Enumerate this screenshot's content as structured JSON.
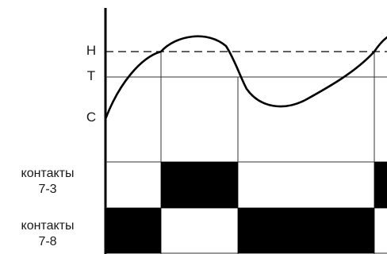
{
  "levels": {
    "h": "H",
    "t": "T",
    "c": "C"
  },
  "rows": {
    "contacts_7_3": {
      "line1": "контакты",
      "line2": "7-3"
    },
    "contacts_7_8": {
      "line1": "контакты",
      "line2": "7-8"
    }
  },
  "colors": {
    "ink": "#000000",
    "grid": "#333333",
    "background": "#ffffff"
  }
}
